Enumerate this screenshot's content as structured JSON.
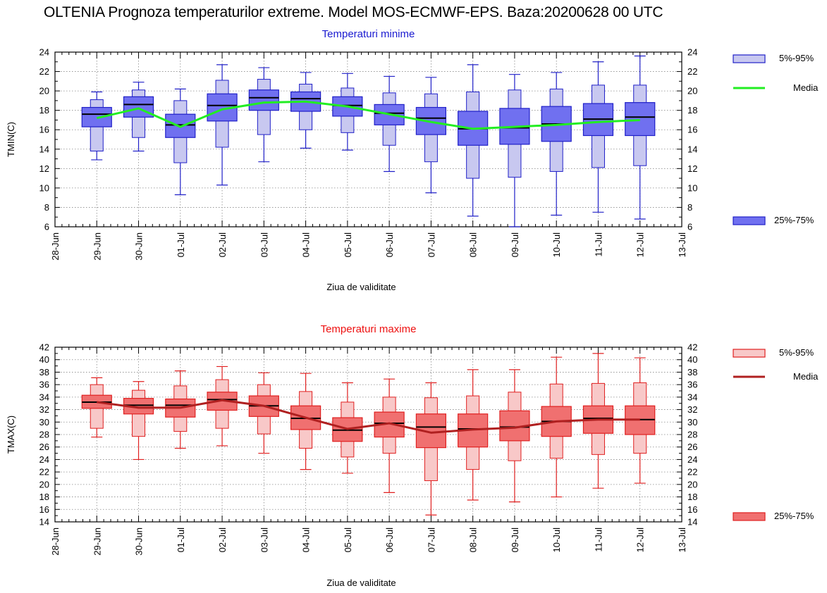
{
  "title": "OLTENIA  Prognoza temperaturilor extreme.  Model MOS-ECMWF-EPS. Baza:20200628 00 UTC",
  "colors": {
    "min_box_light": "#c8c8f0",
    "min_box_dark": "#7070f0",
    "min_stroke": "#2020c8",
    "min_media": "#22ee22",
    "min_subtitle": "#1a1ad0",
    "max_box_light": "#f8c8c8",
    "max_box_dark": "#f07070",
    "max_stroke": "#e02020",
    "max_media": "#b02020",
    "max_subtitle": "#ee1111"
  },
  "chart_data": [
    {
      "type": "boxplot",
      "title": "Temperaturi minime",
      "xlabel": "Ziua de validitate",
      "ylabel": "TMIN(C)",
      "x_ticks": [
        "28-Jun",
        "29-Jun",
        "30-Jun",
        "01-Jul",
        "02-Jul",
        "03-Jul",
        "04-Jul",
        "05-Jul",
        "06-Jul",
        "07-Jul",
        "08-Jul",
        "09-Jul",
        "10-Jul",
        "11-Jul",
        "12-Jul",
        "13-Jul"
      ],
      "categories": [
        "29-Jun",
        "30-Jun",
        "01-Jul",
        "02-Jul",
        "03-Jul",
        "04-Jul",
        "05-Jul",
        "06-Jul",
        "07-Jul",
        "08-Jul",
        "09-Jul",
        "10-Jul",
        "11-Jul",
        "12-Jul"
      ],
      "ylim": [
        6,
        24
      ],
      "yticks": [
        6,
        8,
        10,
        12,
        14,
        16,
        18,
        20,
        22,
        24
      ],
      "grid": true,
      "legend": {
        "items": [
          "5%-95%",
          "Media",
          "25%-75%"
        ],
        "placement": "right"
      },
      "series": {
        "min": [
          12.9,
          13.8,
          9.3,
          10.3,
          12.7,
          14.1,
          13.9,
          11.7,
          9.5,
          7.1,
          6.0,
          7.2,
          7.5,
          6.8
        ],
        "p5": [
          13.8,
          15.2,
          12.6,
          14.2,
          15.5,
          16.0,
          15.7,
          14.4,
          12.7,
          11.0,
          11.1,
          11.7,
          12.1,
          12.3
        ],
        "p25": [
          16.3,
          17.3,
          15.2,
          16.9,
          18.0,
          17.9,
          17.4,
          16.5,
          15.5,
          14.4,
          14.5,
          14.8,
          15.4,
          15.4
        ],
        "median": [
          17.6,
          18.6,
          16.5,
          18.5,
          19.3,
          19.2,
          18.5,
          17.7,
          17.2,
          16.1,
          16.2,
          16.6,
          17.1,
          17.3
        ],
        "p75": [
          18.3,
          19.4,
          17.6,
          19.7,
          20.1,
          19.9,
          19.4,
          18.6,
          18.3,
          17.9,
          18.2,
          18.4,
          18.7,
          18.8
        ],
        "p95": [
          19.1,
          20.1,
          19.0,
          21.1,
          21.2,
          20.7,
          20.3,
          19.8,
          19.7,
          19.9,
          20.1,
          20.2,
          20.6,
          20.6
        ],
        "max": [
          19.9,
          20.9,
          20.2,
          22.7,
          22.4,
          21.9,
          21.8,
          21.5,
          21.4,
          22.7,
          21.7,
          21.9,
          23.0,
          23.6
        ],
        "media": [
          17.2,
          18.2,
          16.3,
          18.1,
          18.8,
          18.9,
          18.4,
          17.6,
          16.8,
          16.1,
          16.3,
          16.5,
          16.8,
          17.0
        ]
      }
    },
    {
      "type": "boxplot",
      "title": "Temperaturi maxime",
      "xlabel": "Ziua de validitate",
      "ylabel": "TMAX(C)",
      "x_ticks": [
        "28-Jun",
        "29-Jun",
        "30-Jun",
        "01-Jul",
        "02-Jul",
        "03-Jul",
        "04-Jul",
        "05-Jul",
        "06-Jul",
        "07-Jul",
        "08-Jul",
        "09-Jul",
        "10-Jul",
        "11-Jul",
        "12-Jul",
        "13-Jul"
      ],
      "categories": [
        "29-Jun",
        "30-Jun",
        "01-Jul",
        "02-Jul",
        "03-Jul",
        "04-Jul",
        "05-Jul",
        "06-Jul",
        "07-Jul",
        "08-Jul",
        "09-Jul",
        "10-Jul",
        "11-Jul",
        "12-Jul"
      ],
      "ylim": [
        14,
        42
      ],
      "yticks": [
        14,
        16,
        18,
        20,
        22,
        24,
        26,
        28,
        30,
        32,
        34,
        36,
        38,
        40,
        42
      ],
      "grid": true,
      "legend": {
        "items": [
          "5%-95%",
          "Media",
          "25%-75%"
        ],
        "placement": "right"
      },
      "series": {
        "min": [
          27.6,
          24.0,
          25.8,
          26.2,
          25.0,
          22.4,
          21.8,
          18.7,
          15.1,
          17.5,
          17.2,
          18.0,
          19.4,
          20.2
        ],
        "p5": [
          29.0,
          27.7,
          28.5,
          29.0,
          28.1,
          25.8,
          24.4,
          25.0,
          20.6,
          22.4,
          23.8,
          24.2,
          24.8,
          25.0
        ],
        "p25": [
          32.2,
          31.3,
          30.8,
          31.9,
          30.9,
          28.8,
          26.9,
          27.6,
          25.9,
          26.0,
          27.0,
          27.7,
          28.2,
          28.0
        ],
        "median": [
          33.2,
          32.7,
          32.7,
          33.6,
          32.6,
          30.6,
          28.7,
          29.8,
          29.2,
          28.9,
          29.2,
          30.1,
          30.6,
          30.4
        ],
        "p75": [
          34.3,
          33.8,
          33.7,
          34.8,
          34.2,
          32.6,
          30.7,
          31.6,
          31.3,
          31.3,
          31.8,
          32.5,
          32.6,
          32.6
        ],
        "p95": [
          36.0,
          35.1,
          35.8,
          36.8,
          36.0,
          34.9,
          33.2,
          34.0,
          33.9,
          34.2,
          34.8,
          36.1,
          36.2,
          36.3
        ],
        "max": [
          37.1,
          36.5,
          38.2,
          38.9,
          37.9,
          37.8,
          36.3,
          36.9,
          36.3,
          38.4,
          38.4,
          40.4,
          41.0,
          40.3
        ],
        "media": [
          33.2,
          32.3,
          32.3,
          33.5,
          32.6,
          30.7,
          28.9,
          29.8,
          28.3,
          28.8,
          29.1,
          30.1,
          30.4,
          30.4
        ]
      }
    }
  ]
}
